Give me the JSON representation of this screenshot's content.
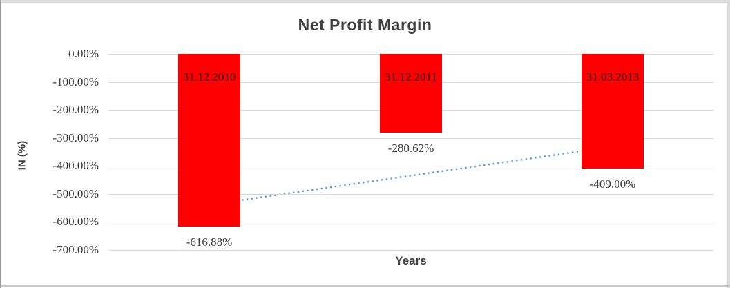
{
  "chart_data": {
    "type": "bar",
    "title": "Net Profit Margin",
    "categories": [
      "31.12.2010",
      "31.12.2011",
      "31.03.2013"
    ],
    "values": [
      -616.88,
      -280.62,
      -409.0
    ],
    "value_labels": [
      "-616.88%",
      "-280.62%",
      "-409.00%"
    ],
    "xlabel": "Years",
    "ylabel": "IN (%)",
    "ylim": [
      -700,
      0
    ],
    "ytick_step": 100,
    "ytick_labels": [
      "0.00%",
      "-100.00%",
      "-200.00%",
      "-300.00%",
      "-400.00%",
      "-500.00%",
      "-600.00%",
      "-700.00%"
    ],
    "grid": true,
    "legend": "none",
    "trendline": {
      "type": "linear",
      "style": "dotted",
      "start_value": -539.4,
      "end_value": -331.6
    },
    "colors": {
      "bar": "#ff0000",
      "bar_label_text": "#261212",
      "gridline": "#d9d9d9",
      "axis_text": "#3a3a3a",
      "title_text": "#404040",
      "trendline": "#5b9bd5",
      "background": "#ffffff",
      "frame_light": "#dcdcdc",
      "frame_dark": "#9a9a9a"
    }
  }
}
